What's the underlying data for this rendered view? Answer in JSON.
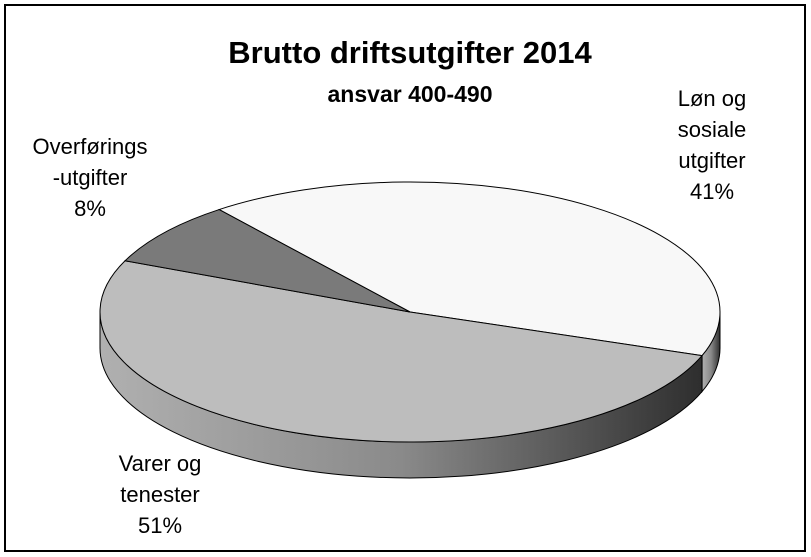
{
  "chart_data": {
    "type": "pie3d",
    "title": "Brutto driftsutgifter 2014",
    "subtitle": "ansvar 400-490",
    "categories": [
      [
        "Løn og",
        "sosiale",
        "utgifter"
      ],
      [
        "Varer og",
        "tenester"
      ],
      [
        "Overførings",
        "-utgifter"
      ]
    ],
    "values": [
      41,
      51,
      8
    ],
    "value_labels": [
      "41%",
      "51%",
      "8%"
    ],
    "colors": [
      "#f8f8f8",
      "#bdbdbd",
      "#7a7a7a"
    ]
  }
}
